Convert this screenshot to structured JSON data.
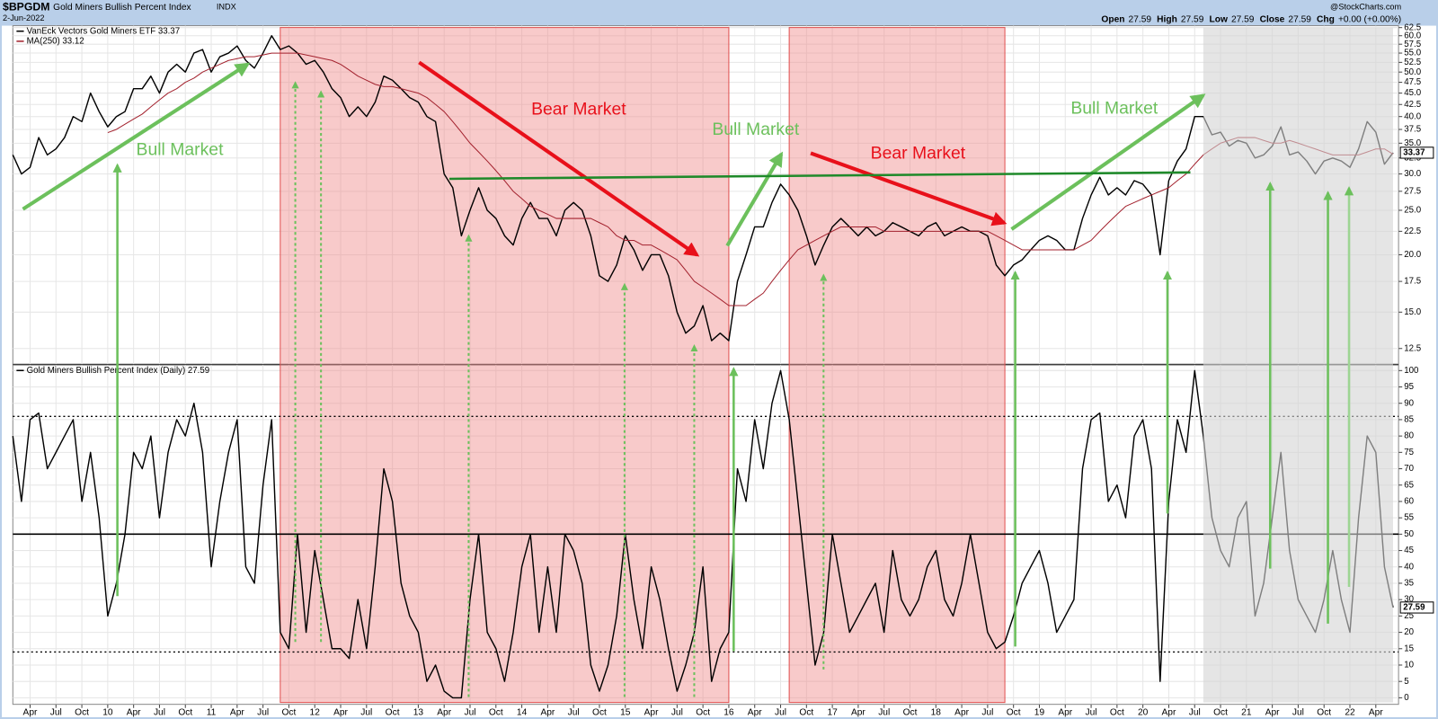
{
  "header": {
    "symbol": "$BPGDM",
    "name": "Gold Miners Bullish Percent Index",
    "exchange": "INDX",
    "date": "2-Jun-2022",
    "watermark": "@StockCharts.com",
    "quote": [
      {
        "label": "Open",
        "value": 27.59
      },
      {
        "label": "High",
        "value": 27.59
      },
      {
        "label": "Low",
        "value": 27.59
      },
      {
        "label": "Close",
        "value": 27.59
      },
      {
        "label": "Chg",
        "value": "+0.00 (+0.00%)"
      }
    ]
  },
  "chart_data": {
    "type": "line",
    "x": [
      "2009-02",
      "2009-03",
      "2009-04",
      "2009-05",
      "2009-06",
      "2009-07",
      "2009-08",
      "2009-09",
      "2009-10",
      "2009-11",
      "2009-12",
      "2010-01",
      "2010-02",
      "2010-03",
      "2010-04",
      "2010-05",
      "2010-06",
      "2010-07",
      "2010-08",
      "2010-09",
      "2010-10",
      "2010-11",
      "2010-12",
      "2011-01",
      "2011-02",
      "2011-03",
      "2011-04",
      "2011-05",
      "2011-06",
      "2011-07",
      "2011-08",
      "2011-09",
      "2011-10",
      "2011-11",
      "2011-12",
      "2012-01",
      "2012-02",
      "2012-03",
      "2012-04",
      "2012-05",
      "2012-06",
      "2012-07",
      "2012-08",
      "2012-09",
      "2012-10",
      "2012-11",
      "2012-12",
      "2013-01",
      "2013-02",
      "2013-03",
      "2013-04",
      "2013-05",
      "2013-06",
      "2013-07",
      "2013-08",
      "2013-09",
      "2013-10",
      "2013-11",
      "2013-12",
      "2014-01",
      "2014-02",
      "2014-03",
      "2014-04",
      "2014-05",
      "2014-06",
      "2014-07",
      "2014-08",
      "2014-09",
      "2014-10",
      "2014-11",
      "2014-12",
      "2015-01",
      "2015-02",
      "2015-03",
      "2015-04",
      "2015-05",
      "2015-06",
      "2015-07",
      "2015-08",
      "2015-09",
      "2015-10",
      "2015-11",
      "2015-12",
      "2016-01",
      "2016-02",
      "2016-03",
      "2016-04",
      "2016-05",
      "2016-06",
      "2016-07",
      "2016-08",
      "2016-09",
      "2016-10",
      "2016-11",
      "2016-12",
      "2017-01",
      "2017-02",
      "2017-03",
      "2017-04",
      "2017-05",
      "2017-06",
      "2017-07",
      "2017-08",
      "2017-09",
      "2017-10",
      "2017-11",
      "2017-12",
      "2018-01",
      "2018-02",
      "2018-03",
      "2018-04",
      "2018-05",
      "2018-06",
      "2018-07",
      "2018-08",
      "2018-09",
      "2018-10",
      "2018-11",
      "2018-12",
      "2019-01",
      "2019-02",
      "2019-03",
      "2019-04",
      "2019-05",
      "2019-06",
      "2019-07",
      "2019-08",
      "2019-09",
      "2019-10",
      "2019-11",
      "2019-12",
      "2020-01",
      "2020-02",
      "2020-03",
      "2020-04",
      "2020-05",
      "2020-06",
      "2020-07",
      "2020-08",
      "2020-09",
      "2020-10",
      "2020-11",
      "2020-12",
      "2021-01",
      "2021-02",
      "2021-03",
      "2021-04",
      "2021-05",
      "2021-06",
      "2021-07",
      "2021-08",
      "2021-09",
      "2021-10",
      "2021-11",
      "2021-12",
      "2022-01",
      "2022-02",
      "2022-03",
      "2022-04",
      "2022-05",
      "2022-06"
    ],
    "xlim": [
      "2009-02",
      "2022-06"
    ],
    "xticks": [
      {
        "value": "2009-04",
        "label": "Apr"
      },
      {
        "value": "2009-07",
        "label": "Jul"
      },
      {
        "value": "2009-10",
        "label": "Oct"
      },
      {
        "value": "2010-01",
        "label": "10"
      },
      {
        "value": "2010-04",
        "label": "Apr"
      },
      {
        "value": "2010-07",
        "label": "Jul"
      },
      {
        "value": "2010-10",
        "label": "Oct"
      },
      {
        "value": "2011-01",
        "label": "11"
      },
      {
        "value": "2011-04",
        "label": "Apr"
      },
      {
        "value": "2011-07",
        "label": "Jul"
      },
      {
        "value": "2011-10",
        "label": "Oct"
      },
      {
        "value": "2012-01",
        "label": "12"
      },
      {
        "value": "2012-04",
        "label": "Apr"
      },
      {
        "value": "2012-07",
        "label": "Jul"
      },
      {
        "value": "2012-10",
        "label": "Oct"
      },
      {
        "value": "2013-01",
        "label": "13"
      },
      {
        "value": "2013-04",
        "label": "Apr"
      },
      {
        "value": "2013-07",
        "label": "Jul"
      },
      {
        "value": "2013-10",
        "label": "Oct"
      },
      {
        "value": "2014-01",
        "label": "14"
      },
      {
        "value": "2014-04",
        "label": "Apr"
      },
      {
        "value": "2014-07",
        "label": "Jul"
      },
      {
        "value": "2014-10",
        "label": "Oct"
      },
      {
        "value": "2015-01",
        "label": "15"
      },
      {
        "value": "2015-04",
        "label": "Apr"
      },
      {
        "value": "2015-07",
        "label": "Jul"
      },
      {
        "value": "2015-10",
        "label": "Oct"
      },
      {
        "value": "2016-01",
        "label": "16"
      },
      {
        "value": "2016-04",
        "label": "Apr"
      },
      {
        "value": "2016-07",
        "label": "Jul"
      },
      {
        "value": "2016-10",
        "label": "Oct"
      },
      {
        "value": "2017-01",
        "label": "17"
      },
      {
        "value": "2017-04",
        "label": "Apr"
      },
      {
        "value": "2017-07",
        "label": "Jul"
      },
      {
        "value": "2017-10",
        "label": "Oct"
      },
      {
        "value": "2018-01",
        "label": "18"
      },
      {
        "value": "2018-04",
        "label": "Apr"
      },
      {
        "value": "2018-07",
        "label": "Jul"
      },
      {
        "value": "2018-10",
        "label": "Oct"
      },
      {
        "value": "2019-01",
        "label": "19"
      },
      {
        "value": "2019-04",
        "label": "Apr"
      },
      {
        "value": "2019-07",
        "label": "Jul"
      },
      {
        "value": "2019-10",
        "label": "Oct"
      },
      {
        "value": "2020-01",
        "label": "20"
      },
      {
        "value": "2020-04",
        "label": "Apr"
      },
      {
        "value": "2020-07",
        "label": "Jul"
      },
      {
        "value": "2020-10",
        "label": "Oct"
      },
      {
        "value": "2021-01",
        "label": "21"
      },
      {
        "value": "2021-04",
        "label": "Apr"
      },
      {
        "value": "2021-07",
        "label": "Jul"
      },
      {
        "value": "2021-10",
        "label": "Oct"
      },
      {
        "value": "2022-01",
        "label": "22"
      },
      {
        "value": "2022-04",
        "label": "Apr"
      }
    ],
    "grid": true,
    "shaded_regions": [
      {
        "start": "2011-09",
        "end": "2016-01",
        "color": "#f08a8a"
      },
      {
        "start": "2016-08",
        "end": "2018-09",
        "color": "#f08a8a"
      },
      {
        "start": "2020-08",
        "end": "2022-06",
        "color": "#d4d4d4",
        "on_top": true
      }
    ],
    "panels": [
      {
        "log_scale": true,
        "ylim": [
          11.56,
          63.1
        ],
        "yticks": [
          12.5,
          {
            "value": 15,
            "label": "15.0"
          },
          17.5,
          {
            "value": 20,
            "label": "20.0"
          },
          22.5,
          {
            "value": 25,
            "label": "25.0"
          },
          27.5,
          {
            "value": 30,
            "label": "30.0"
          },
          32.5,
          {
            "value": 35,
            "label": "35.0"
          },
          37.5,
          {
            "value": 40,
            "label": "40.0"
          },
          42.5,
          {
            "value": 45,
            "label": "45.0"
          },
          47.5,
          {
            "value": 50,
            "label": "50.0"
          },
          52.5,
          {
            "value": 55,
            "label": "55.0"
          },
          57.5,
          {
            "value": 60,
            "label": "60.0"
          },
          62.5
        ],
        "series": [
          {
            "name": "VanEck Vectors Gold Miners ETF 33.37",
            "color": "#000000",
            "values": [
              33,
              30,
              31,
              36,
              33,
              34,
              36,
              40,
              39,
              45,
              41,
              38,
              40,
              41,
              46,
              46,
              49,
              45,
              50,
              52,
              50,
              55,
              56,
              50,
              54,
              55,
              57,
              53,
              51,
              55,
              60,
              56,
              57,
              55,
              52,
              53,
              50,
              46,
              44,
              40,
              42,
              40,
              43,
              49,
              48,
              46,
              44,
              43,
              40,
              39,
              30,
              28,
              22,
              25,
              28,
              25,
              24,
              22,
              21,
              24,
              26,
              24,
              24,
              22,
              25,
              26,
              25,
              22,
              18,
              17.5,
              19,
              22,
              20.5,
              18.5,
              20,
              20,
              18,
              15,
              13.5,
              14,
              15.5,
              13,
              13.5,
              13,
              17.5,
              20,
              23,
              23,
              26,
              28.5,
              27,
              25,
              22,
              19,
              21,
              23,
              24,
              23,
              22,
              23,
              22,
              22.5,
              23.5,
              23,
              22.5,
              22,
              23,
              23.5,
              22,
              22.5,
              23,
              22.5,
              22.5,
              22,
              19,
              18,
              19,
              19.5,
              20.5,
              21.5,
              22,
              21.5,
              20.5,
              20.5,
              24,
              27,
              29.5,
              27,
              28,
              27,
              29,
              28.5,
              27,
              20,
              29,
              32,
              34,
              40,
              40,
              36.5,
              37,
              34.5,
              35.5,
              35,
              32.5,
              33,
              34.5,
              38,
              33,
              33.5,
              32,
              30,
              32,
              32.5,
              32,
              31,
              34,
              39,
              37,
              31.5,
              33.37
            ]
          },
          {
            "name": "MA(250) 33.12",
            "color": "#a3222e",
            "values": [
              null,
              null,
              null,
              null,
              null,
              null,
              null,
              null,
              null,
              null,
              null,
              36.9,
              37.5,
              38.5,
              39.5,
              40.5,
              42,
              43.5,
              45,
              46,
              47.5,
              48.5,
              50,
              51,
              52,
              53,
              53.5,
              54,
              54,
              54.5,
              55,
              55,
              55,
              55,
              54.5,
              54,
              53.5,
              53,
              52,
              50.5,
              49,
              48,
              47,
              46.5,
              46.5,
              46,
              45.5,
              45,
              44,
              42.5,
              41,
              39,
              37,
              35,
              33.5,
              32,
              30.5,
              29,
              27.5,
              26.5,
              25.5,
              25,
              24.5,
              24,
              24,
              24,
              24,
              24,
              23.5,
              23,
              22,
              21.5,
              21.5,
              21,
              21,
              20.5,
              20,
              19.5,
              18.5,
              17.5,
              17,
              16.5,
              16,
              15.5,
              15.5,
              15.5,
              16,
              16.5,
              17.5,
              18.5,
              19.5,
              20.5,
              21,
              21.5,
              22,
              22.5,
              23,
              23,
              23,
              23,
              23,
              22.5,
              22.5,
              22.5,
              22.5,
              22.5,
              22.5,
              22.5,
              22.5,
              22.5,
              22.5,
              22.5,
              22.5,
              22.5,
              22,
              21.5,
              21,
              20.5,
              20.5,
              20.5,
              20.5,
              20.5,
              20.5,
              20.5,
              21,
              21.5,
              22.5,
              23.5,
              24.5,
              25.5,
              26,
              26.5,
              27,
              27.5,
              28,
              29,
              30,
              31.5,
              33,
              34,
              35,
              35.5,
              36,
              36,
              36,
              35.5,
              35,
              35,
              35.5,
              35,
              34.5,
              34,
              33.5,
              33,
              33,
              33,
              33,
              33.5,
              34,
              34,
              33.12
            ]
          }
        ],
        "annotations": [
          {
            "text": "Bull Market",
            "color": "#6cc05c"
          },
          {
            "text": "Bear Market",
            "color": "#e8101a"
          },
          {
            "text": "Bull Market",
            "color": "#6cc05c"
          },
          {
            "text": "Bear Market",
            "color": "#e8101a"
          },
          {
            "text": "Bull Market",
            "color": "#6cc05c"
          }
        ]
      },
      {
        "log_scale": false,
        "ylim": [
          -2,
          101.7
        ],
        "yticks": [
          0,
          5,
          10,
          15,
          20,
          25,
          30,
          35,
          40,
          45,
          50,
          55,
          60,
          65,
          70,
          75,
          80,
          85,
          90,
          95,
          100
        ],
        "reference_lines": [
          {
            "value": 86,
            "style": "dotted"
          },
          {
            "value": 50,
            "style": "solid"
          },
          {
            "value": 14,
            "style": "dotted"
          }
        ],
        "series": [
          {
            "name": "Gold Miners Bullish Percent Index (Daily) 27.59",
            "color": "#000000",
            "values": [
              80,
              60,
              85,
              87,
              70,
              75,
              80,
              85,
              60,
              75,
              55,
              25,
              35,
              50,
              75,
              70,
              80,
              55,
              75,
              85,
              80,
              90,
              75,
              40,
              60,
              75,
              85,
              40,
              35,
              65,
              85,
              20,
              15,
              50,
              20,
              45,
              30,
              15,
              15,
              12,
              30,
              15,
              40,
              70,
              60,
              35,
              25,
              20,
              5,
              10,
              2,
              0,
              0,
              30,
              50,
              20,
              15,
              5,
              20,
              40,
              50,
              20,
              40,
              20,
              50,
              45,
              35,
              10,
              2,
              10,
              25,
              50,
              30,
              15,
              40,
              30,
              15,
              2,
              10,
              20,
              40,
              5,
              15,
              20,
              70,
              60,
              85,
              70,
              90,
              100,
              85,
              60,
              35,
              10,
              20,
              50,
              35,
              20,
              25,
              30,
              35,
              20,
              45,
              30,
              25,
              30,
              40,
              45,
              30,
              25,
              35,
              50,
              35,
              20,
              15,
              17,
              25,
              35,
              40,
              45,
              35,
              20,
              25,
              30,
              70,
              85,
              87,
              60,
              65,
              55,
              80,
              85,
              70,
              5,
              60,
              85,
              75,
              100,
              80,
              55,
              45,
              40,
              55,
              60,
              25,
              35,
              55,
              75,
              45,
              30,
              25,
              20,
              30,
              45,
              30,
              20,
              55,
              80,
              75,
              40,
              27.59
            ]
          }
        ]
      }
    ]
  }
}
